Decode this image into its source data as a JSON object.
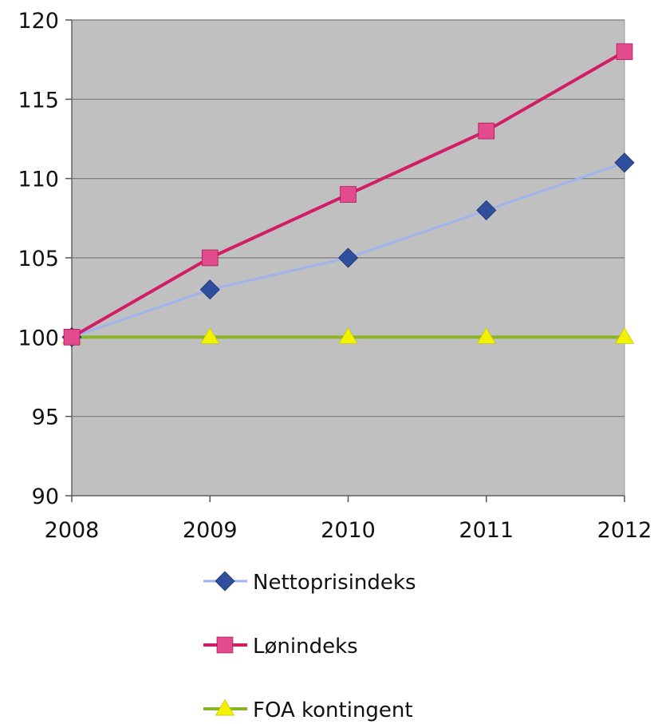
{
  "chart_data": {
    "type": "line",
    "title": "",
    "xlabel": "",
    "ylabel": "",
    "categories": [
      "2008",
      "2009",
      "2010",
      "2011",
      "2012"
    ],
    "yticks": [
      "90",
      "95",
      "100",
      "105",
      "110",
      "115",
      "120"
    ],
    "ylim": [
      90,
      120
    ],
    "grid": true,
    "legend_position": "bottom",
    "plot_background": "#c0c0c0",
    "series": [
      {
        "name": "Nettoprisindeks",
        "values": [
          100,
          103,
          105,
          108,
          111
        ],
        "color": "#9fb4ec",
        "marker_color": "#2f4f9e",
        "marker": "diamond"
      },
      {
        "name": "Lønindeks",
        "values": [
          100,
          105,
          109,
          113,
          118
        ],
        "color": "#d21c66",
        "marker_color": "#e24c8c",
        "marker": "square"
      },
      {
        "name": "FOA kontingent",
        "values": [
          100,
          100,
          100,
          100,
          100
        ],
        "color": "#8ab42a",
        "marker_color": "#f2f200",
        "marker": "triangle"
      }
    ]
  }
}
